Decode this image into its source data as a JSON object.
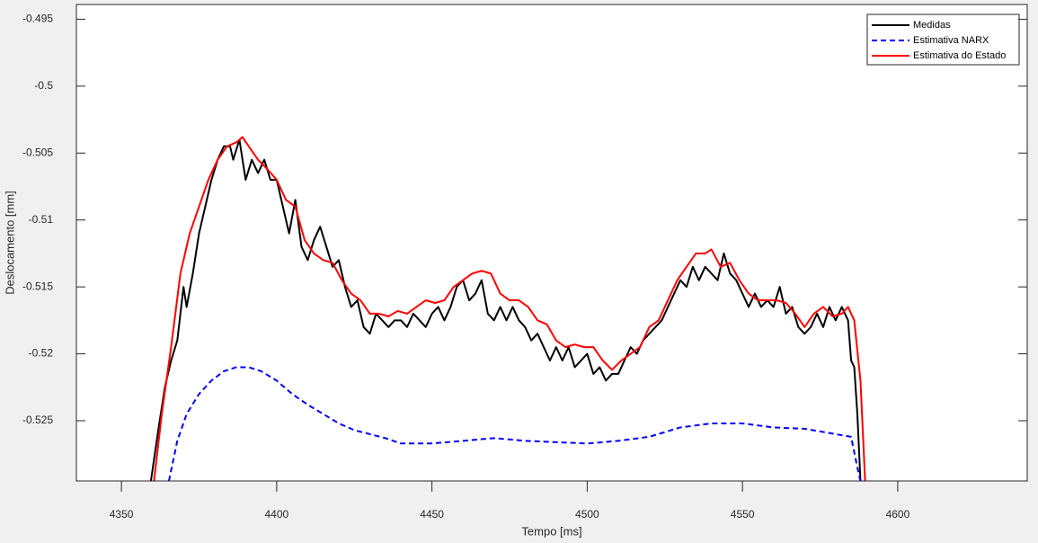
{
  "chart_data": {
    "type": "line",
    "xlabel": "Tempo [ms]",
    "ylabel": "Deslocamento [mm]",
    "xlim": [
      4335.5,
      4641.7
    ],
    "ylim": [
      -0.5295,
      -0.4939
    ],
    "xticks": [
      4350,
      4400,
      4450,
      4500,
      4550,
      4600
    ],
    "yticks": [
      -0.525,
      -0.52,
      -0.515,
      -0.51,
      -0.505,
      -0.5,
      -0.495
    ],
    "grid": false,
    "legend": "upper right",
    "series": [
      {
        "name": "Medidas",
        "color": "#000000",
        "linestyle": "solid",
        "x": [
          4359.5,
          4362,
          4364,
          4366,
          4368,
          4370,
          4371,
          4373,
          4375,
          4377,
          4379,
          4381,
          4383,
          4385,
          4386,
          4388,
          4390,
          4392,
          4394,
          4396,
          4398,
          4400,
          4402,
          4404,
          4406,
          4408,
          4410,
          4412,
          4414,
          4416,
          4418,
          4420,
          4422,
          4424,
          4426,
          4428,
          4430,
          4432,
          4434,
          4436,
          4438,
          4440,
          4442,
          4444,
          4446,
          4448,
          4450,
          4452,
          4454,
          4456,
          4458,
          4460,
          4462,
          4464,
          4466,
          4468,
          4470,
          4472,
          4474,
          4476,
          4478,
          4480,
          4482,
          4484,
          4486,
          4488,
          4490,
          4492,
          4494,
          4496,
          4498,
          4500,
          4502,
          4504,
          4506,
          4508,
          4510,
          4512,
          4514,
          4516,
          4518,
          4520,
          4522,
          4524,
          4526,
          4528,
          4530,
          4532,
          4534,
          4536,
          4538,
          4540,
          4542,
          4544,
          4546,
          4548,
          4550,
          4552,
          4554,
          4556,
          4558,
          4560,
          4562,
          4564,
          4566,
          4568,
          4570,
          4572,
          4574,
          4576,
          4578,
          4580,
          4582,
          4584,
          4585,
          4586,
          4587,
          4588
        ],
        "values": [
          -0.5295,
          -0.5255,
          -0.5225,
          -0.5205,
          -0.519,
          -0.515,
          -0.5165,
          -0.514,
          -0.511,
          -0.509,
          -0.507,
          -0.5055,
          -0.5045,
          -0.5045,
          -0.5055,
          -0.504,
          -0.507,
          -0.5055,
          -0.5065,
          -0.5055,
          -0.507,
          -0.507,
          -0.509,
          -0.511,
          -0.5085,
          -0.512,
          -0.513,
          -0.5115,
          -0.5105,
          -0.512,
          -0.5135,
          -0.513,
          -0.515,
          -0.5165,
          -0.516,
          -0.518,
          -0.5185,
          -0.517,
          -0.5175,
          -0.518,
          -0.5175,
          -0.5175,
          -0.518,
          -0.517,
          -0.5175,
          -0.518,
          -0.517,
          -0.5165,
          -0.5175,
          -0.5165,
          -0.515,
          -0.5145,
          -0.516,
          -0.5155,
          -0.5145,
          -0.517,
          -0.5175,
          -0.5165,
          -0.5175,
          -0.5165,
          -0.5175,
          -0.518,
          -0.519,
          -0.5185,
          -0.5195,
          -0.5205,
          -0.5195,
          -0.5205,
          -0.5195,
          -0.521,
          -0.5205,
          -0.52,
          -0.5215,
          -0.521,
          -0.522,
          -0.5215,
          -0.5215,
          -0.5205,
          -0.5195,
          -0.52,
          -0.519,
          -0.5185,
          -0.518,
          -0.5175,
          -0.5165,
          -0.5155,
          -0.5145,
          -0.515,
          -0.5135,
          -0.5145,
          -0.5135,
          -0.514,
          -0.5145,
          -0.5125,
          -0.514,
          -0.5145,
          -0.5155,
          -0.5165,
          -0.5155,
          -0.5165,
          -0.516,
          -0.5165,
          -0.515,
          -0.517,
          -0.5165,
          -0.518,
          -0.5185,
          -0.518,
          -0.517,
          -0.518,
          -0.5165,
          -0.5175,
          -0.5165,
          -0.5175,
          -0.5205,
          -0.521,
          -0.5245,
          -0.5295
        ]
      },
      {
        "name": "Estimativa NARX",
        "color": "#0000ff",
        "linestyle": "dashed",
        "x": [
          4365.3,
          4368,
          4371,
          4375,
          4379,
          4383,
          4387,
          4391,
          4395,
          4400,
          4405,
          4410,
          4415,
          4420,
          4425,
          4430,
          4435,
          4440,
          4450,
          4460,
          4470,
          4480,
          4490,
          4500,
          4510,
          4520,
          4530,
          4540,
          4550,
          4560,
          4570,
          4580,
          4585,
          4587,
          4588
        ],
        "values": [
          -0.5295,
          -0.5265,
          -0.5245,
          -0.523,
          -0.522,
          -0.5213,
          -0.521,
          -0.521,
          -0.5213,
          -0.522,
          -0.523,
          -0.5238,
          -0.5245,
          -0.5252,
          -0.5257,
          -0.526,
          -0.5263,
          -0.5267,
          -0.5267,
          -0.5265,
          -0.5263,
          -0.5265,
          -0.5266,
          -0.5267,
          -0.5265,
          -0.5262,
          -0.5255,
          -0.5252,
          -0.5252,
          -0.5255,
          -0.5256,
          -0.526,
          -0.5262,
          -0.5285,
          -0.5295
        ]
      },
      {
        "name": "Estimativa do Estado",
        "color": "#ff0000",
        "linestyle": "solid",
        "x": [
          4360.5,
          4363,
          4366,
          4369,
          4372,
          4375,
          4378,
          4381,
          4384,
          4387,
          4389,
          4391,
          4394,
          4397,
          4400,
          4403,
          4406,
          4409,
          4412,
          4415,
          4418,
          4421,
          4424,
          4427,
          4430,
          4433,
          4436,
          4439,
          4442,
          4445,
          4448,
          4451,
          4454,
          4457,
          4460,
          4463,
          4466,
          4469,
          4472,
          4475,
          4478,
          4481,
          4484,
          4487,
          4490,
          4493,
          4496,
          4499,
          4502,
          4505,
          4508,
          4511,
          4514,
          4517,
          4520,
          4523,
          4526,
          4529,
          4532,
          4535,
          4538,
          4540,
          4543,
          4546,
          4549,
          4552,
          4555,
          4558,
          4561,
          4564,
          4567,
          4570,
          4573,
          4576,
          4579,
          4582,
          4584,
          4586,
          4588,
          4589.5
        ],
        "values": [
          -0.5295,
          -0.5245,
          -0.5195,
          -0.514,
          -0.511,
          -0.509,
          -0.507,
          -0.5055,
          -0.5045,
          -0.5042,
          -0.5038,
          -0.5045,
          -0.5055,
          -0.5062,
          -0.507,
          -0.5085,
          -0.509,
          -0.5115,
          -0.5125,
          -0.513,
          -0.5132,
          -0.5145,
          -0.5155,
          -0.516,
          -0.517,
          -0.517,
          -0.5172,
          -0.5168,
          -0.517,
          -0.5165,
          -0.516,
          -0.5162,
          -0.516,
          -0.515,
          -0.5145,
          -0.514,
          -0.5138,
          -0.514,
          -0.5155,
          -0.516,
          -0.516,
          -0.5165,
          -0.5175,
          -0.5178,
          -0.519,
          -0.5195,
          -0.5193,
          -0.5195,
          -0.5195,
          -0.5205,
          -0.5212,
          -0.5205,
          -0.52,
          -0.5195,
          -0.518,
          -0.5175,
          -0.516,
          -0.5145,
          -0.5135,
          -0.5125,
          -0.5125,
          -0.5122,
          -0.5135,
          -0.5132,
          -0.5145,
          -0.5155,
          -0.516,
          -0.516,
          -0.516,
          -0.5162,
          -0.517,
          -0.518,
          -0.517,
          -0.5165,
          -0.5172,
          -0.517,
          -0.5165,
          -0.5175,
          -0.522,
          -0.5295
        ]
      }
    ]
  }
}
